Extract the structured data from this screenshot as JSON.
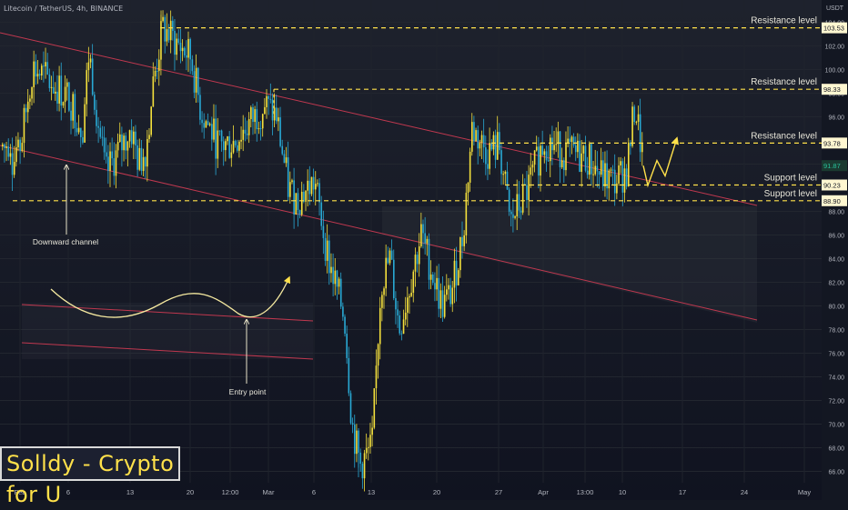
{
  "header": {
    "symbol_info": "Litecoin / TetherUS, 4h, BINANCE"
  },
  "watermark": {
    "text": "Solldy - Crypto for U"
  },
  "colors": {
    "background": "#131722",
    "bull_candle": "#f5e13c",
    "bear_candle": "#29a9d4",
    "level_line": "#ffe14a",
    "channel_line": "#c0384f",
    "annotation": "#f5e9a0",
    "axis_text": "#b2b5be",
    "price_label_bg": "#fff7d1"
  },
  "chart_data": {
    "type": "candlestick",
    "y_axis": {
      "unit_label": "USDT",
      "min": 65,
      "max": 105,
      "ticks": [
        66,
        68,
        70,
        72,
        74,
        76,
        78,
        80,
        82,
        84,
        86,
        88,
        90,
        92,
        94,
        96,
        98,
        100,
        102,
        104
      ]
    },
    "x_axis": {
      "ticks": [
        "Feb",
        "6",
        "13",
        "20",
        "12:00",
        "Mar",
        "6",
        "13",
        "20",
        "27",
        "Apr",
        "13:00",
        "10",
        "17",
        "24",
        "May"
      ]
    },
    "current_price": 91.87,
    "levels": [
      {
        "label": "Resistance level",
        "price": 103.53
      },
      {
        "label": "Resistance level",
        "price": 98.33
      },
      {
        "label": "Resistance level",
        "price": 93.78
      },
      {
        "label": "Support level",
        "price": 90.23
      },
      {
        "label": "Support level",
        "price": 88.9
      }
    ],
    "price_labels": [
      "103.53",
      "98.33",
      "93.78",
      "91.87",
      "90.23",
      "88.90"
    ],
    "annotations": [
      {
        "text": "Downward channel"
      },
      {
        "text": "Entry point"
      }
    ],
    "close_path": [
      [
        "Feb",
        93.5
      ],
      [
        "Feb 3",
        100.2
      ],
      [
        "Feb 6",
        97.6
      ],
      [
        "Feb 8",
        95.0
      ],
      [
        "Feb 10",
        101.5
      ],
      [
        "Feb 12",
        91.0
      ],
      [
        "Feb 13",
        95.0
      ],
      [
        "Feb 15",
        92.0
      ],
      [
        "Feb 17",
        93.5
      ],
      [
        "Feb 18",
        99.0
      ],
      [
        "Feb 19",
        103.5
      ],
      [
        "Feb 20",
        101.0
      ],
      [
        "Feb 22",
        96.5
      ],
      [
        "Feb 24",
        93.5
      ],
      [
        "Feb 26",
        93.8
      ],
      [
        "Feb 28",
        97.0
      ],
      [
        "Mar 1",
        96.0
      ],
      [
        "Mar 2",
        90.0
      ],
      [
        "Mar 4",
        89.0
      ],
      [
        "Mar 6",
        90.5
      ],
      [
        "Mar 8",
        84.0
      ],
      [
        "Mar 10",
        79.0
      ],
      [
        "Mar 11",
        70.0
      ],
      [
        "Mar 12",
        66.5
      ],
      [
        "Mar 13",
        68.0
      ],
      [
        "Mar 14",
        82.0
      ],
      [
        "Mar 15",
        84.0
      ],
      [
        "Mar 16",
        78.0
      ],
      [
        "Mar 17",
        82.0
      ],
      [
        "Mar 18",
        86.0
      ],
      [
        "Mar 20",
        80.0
      ],
      [
        "Mar 22",
        81.0
      ],
      [
        "Mar 23",
        86.0
      ],
      [
        "Mar 24",
        95.0
      ],
      [
        "Mar 25",
        93.0
      ],
      [
        "Mar 27",
        93.5
      ],
      [
        "Mar 29",
        87.0
      ],
      [
        "Mar 31",
        90.0
      ],
      [
        "Apr 1",
        94.0
      ],
      [
        "Apr 3",
        93.0
      ],
      [
        "Apr 5",
        92.5
      ],
      [
        "Apr 7",
        91.0
      ],
      [
        "Apr 9",
        90.5
      ],
      [
        "Apr 10",
        91.5
      ],
      [
        "Apr 11",
        97.0
      ],
      [
        "Apr 12",
        91.87
      ]
    ],
    "projection": [
      [
        "Apr 12",
        91.87
      ],
      [
        "Apr 13",
        90.2
      ],
      [
        "Apr 14",
        92.3
      ],
      [
        "Apr 15",
        91.0
      ],
      [
        "Apr 17",
        94.2
      ]
    ],
    "grid": true
  }
}
